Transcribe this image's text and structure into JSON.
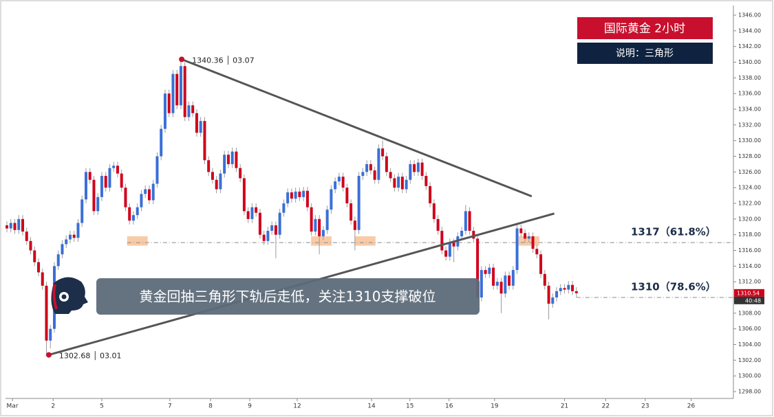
{
  "chart_data": {
    "type": "candlestick",
    "title": "国际黄金  2小时",
    "subtitle": "说明：三角形",
    "caption": "黄金回抽三角形下轨后走低，关注1310支撑破位",
    "up_color": "#3a6fd6",
    "down_color": "#d0021b",
    "xlim": [
      0,
      183
    ],
    "ylim": [
      1298,
      1346
    ],
    "xticks": [
      {
        "value": 1.4,
        "label": "Mar"
      },
      {
        "value": 11.7,
        "label": "2"
      },
      {
        "value": 24.0,
        "label": "5"
      },
      {
        "value": 41.2,
        "label": "7"
      },
      {
        "value": 51.5,
        "label": "8"
      },
      {
        "value": 61.4,
        "label": "9"
      },
      {
        "value": 73.4,
        "label": "12"
      },
      {
        "value": 92.2,
        "label": "14"
      },
      {
        "value": 101.9,
        "label": "15"
      },
      {
        "value": 111.8,
        "label": "16"
      },
      {
        "value": 123.3,
        "label": "19"
      },
      {
        "value": 141.0,
        "label": "21"
      },
      {
        "value": 151.4,
        "label": "22"
      },
      {
        "value": 161.4,
        "label": "23"
      },
      {
        "value": 173.0,
        "label": "26"
      }
    ],
    "yticks": [
      {
        "value": 1298,
        "label": "1298.00"
      },
      {
        "value": 1300,
        "label": "1300.00"
      },
      {
        "value": 1302,
        "label": "1302.00"
      },
      {
        "value": 1304,
        "label": "1304.00"
      },
      {
        "value": 1306,
        "label": "1306.00"
      },
      {
        "value": 1308,
        "label": "1308.00"
      },
      {
        "value": 1310,
        "label": "1310.00"
      },
      {
        "value": 1312,
        "label": "1312.00"
      },
      {
        "value": 1314,
        "label": "1314.00"
      },
      {
        "value": 1316,
        "label": "1316.00"
      },
      {
        "value": 1318,
        "label": "1318.00"
      },
      {
        "value": 1320,
        "label": "1320.00"
      },
      {
        "value": 1322,
        "label": "1322.00"
      },
      {
        "value": 1324,
        "label": "1324.00"
      },
      {
        "value": 1326,
        "label": "1326.00"
      },
      {
        "value": 1328,
        "label": "1328.00"
      },
      {
        "value": 1330,
        "label": "1330.00"
      },
      {
        "value": 1332,
        "label": "1332.00"
      },
      {
        "value": 1334,
        "label": "1334.00"
      },
      {
        "value": 1336,
        "label": "1336.00"
      },
      {
        "value": 1338,
        "label": "1338.00"
      },
      {
        "value": 1340,
        "label": "1340.00"
      },
      {
        "value": 1342,
        "label": "1342.00"
      },
      {
        "value": 1344,
        "label": "1344.00"
      },
      {
        "value": 1346,
        "label": "1346.00"
      }
    ],
    "open": [
      1319.2,
      1318.8,
      1319.5,
      1318.6,
      1320.0,
      1318.4,
      1317.2,
      1316.0,
      1314.5,
      1313.2,
      1311.5,
      1304.5,
      1306.0,
      1314.0,
      1315.5,
      1316.8,
      1317.4,
      1318.0,
      1317.6,
      1319.5,
      1322.5,
      1326.0,
      1325.0,
      1321.0,
      1322.8,
      1325.5,
      1324.0,
      1326.5,
      1326.8,
      1325.8,
      1324.0,
      1321.5,
      1319.8,
      1320.5,
      1321.5,
      1323.2,
      1323.8,
      1322.4,
      1324.5,
      1328.0,
      1331.5,
      1336.0,
      1333.5,
      1338.5,
      1334.5,
      1339.5,
      1333.0,
      1334.5,
      1333.5,
      1331.0,
      1332.5,
      1327.5,
      1326.0,
      1325.0,
      1323.8,
      1325.8,
      1328.2,
      1327.0,
      1328.6,
      1326.5,
      1325.2,
      1321.0,
      1320.0,
      1321.5,
      1320.8,
      1318.0,
      1317.2,
      1318.5,
      1319.2,
      1318.0,
      1320.8,
      1322.0,
      1323.4,
      1322.6,
      1323.5,
      1322.8,
      1323.6,
      1321.5,
      1318.4,
      1320.0,
      1317.8,
      1318.6,
      1321.2,
      1323.8,
      1324.8,
      1325.4,
      1324.0,
      1322.0,
      1319.8,
      1318.6,
      1325.5,
      1326.0,
      1327.0,
      1326.2,
      1325.0,
      1329.0,
      1328.0,
      1326.0,
      1325.2,
      1324.0,
      1325.4,
      1323.8,
      1325.0,
      1327.0,
      1326.0,
      1327.2,
      1325.5,
      1324.2,
      1322.0,
      1320.0,
      1318.5,
      1316.0,
      1315.2,
      1317.0,
      1316.5,
      1317.8,
      1318.5,
      1321.0,
      1318.5,
      1317.5,
      1310.0,
      1313.5,
      1313.0,
      1313.8,
      1311.5,
      1312.0,
      1310.5,
      1312.8,
      1311.5,
      1313.5,
      1318.8,
      1318.2,
      1317.5,
      1317.8,
      1316.2,
      1315.5,
      1313.0,
      1311.5,
      1309.2,
      1310.0,
      1310.8,
      1311.2,
      1311.0,
      1311.6,
      1310.8
    ],
    "high": [
      1319.7,
      1320.0,
      1320.0,
      1320.5,
      1320.5,
      1318.9,
      1317.7,
      1316.5,
      1315.0,
      1313.7,
      1312.0,
      1306.5,
      1314.5,
      1316.0,
      1317.3,
      1317.9,
      1318.5,
      1318.5,
      1320.0,
      1323.0,
      1326.5,
      1326.5,
      1325.5,
      1323.3,
      1326.0,
      1326.0,
      1327.0,
      1327.3,
      1327.3,
      1326.3,
      1324.5,
      1322.0,
      1321.0,
      1322.0,
      1323.7,
      1324.3,
      1324.3,
      1325.0,
      1328.5,
      1332.0,
      1336.5,
      1336.5,
      1339.0,
      1339.0,
      1340.36,
      1340.0,
      1335.0,
      1335.0,
      1334.0,
      1333.0,
      1333.0,
      1328.0,
      1326.5,
      1325.5,
      1326.3,
      1328.7,
      1328.7,
      1329.1,
      1329.1,
      1327.0,
      1325.7,
      1321.5,
      1322.0,
      1322.0,
      1321.3,
      1318.5,
      1319.0,
      1319.7,
      1319.7,
      1321.3,
      1322.5,
      1323.9,
      1323.9,
      1324.0,
      1324.0,
      1324.1,
      1324.1,
      1322.0,
      1320.5,
      1320.5,
      1319.1,
      1321.7,
      1324.3,
      1325.3,
      1325.9,
      1325.9,
      1324.5,
      1322.5,
      1320.3,
      1326.0,
      1326.5,
      1327.5,
      1327.5,
      1326.7,
      1329.5,
      1330.0,
      1328.5,
      1326.5,
      1325.7,
      1325.9,
      1325.9,
      1325.5,
      1327.5,
      1327.5,
      1327.7,
      1327.7,
      1326.0,
      1324.7,
      1322.5,
      1320.5,
      1319.0,
      1316.5,
      1317.5,
      1317.5,
      1318.3,
      1319.0,
      1321.8,
      1321.5,
      1319.0,
      1318.0,
      1314.0,
      1314.0,
      1314.3,
      1314.3,
      1312.5,
      1312.5,
      1313.3,
      1313.3,
      1314.0,
      1319.5,
      1319.3,
      1318.7,
      1318.3,
      1318.3,
      1316.7,
      1316.0,
      1313.5,
      1312.0,
      1310.5,
      1311.3,
      1311.7,
      1311.7,
      1312.1,
      1312.1,
      1311.3
    ],
    "low": [
      1318.3,
      1318.3,
      1318.1,
      1318.1,
      1317.9,
      1316.7,
      1315.5,
      1314.0,
      1312.7,
      1311.0,
      1302.68,
      1303.5,
      1305.5,
      1313.5,
      1315.0,
      1316.3,
      1316.9,
      1317.1,
      1317.1,
      1319.0,
      1322.0,
      1324.5,
      1320.5,
      1320.5,
      1322.3,
      1323.5,
      1323.5,
      1326.0,
      1325.3,
      1323.5,
      1321.0,
      1319.3,
      1319.3,
      1320.0,
      1321.0,
      1322.7,
      1321.9,
      1321.9,
      1324.0,
      1327.5,
      1331.0,
      1333.0,
      1333.0,
      1334.0,
      1334.0,
      1332.5,
      1332.5,
      1333.0,
      1330.5,
      1330.5,
      1327.0,
      1325.5,
      1324.5,
      1323.3,
      1323.3,
      1325.3,
      1326.5,
      1326.5,
      1326.0,
      1324.7,
      1320.5,
      1319.5,
      1319.5,
      1320.3,
      1317.5,
      1316.7,
      1316.7,
      1318.0,
      1315.0,
      1317.5,
      1320.3,
      1321.5,
      1322.1,
      1322.1,
      1322.3,
      1322.3,
      1321.0,
      1317.9,
      1317.9,
      1315.5,
      1317.3,
      1318.1,
      1320.7,
      1323.3,
      1324.3,
      1323.5,
      1321.5,
      1319.3,
      1316.0,
      1318.1,
      1325.0,
      1325.5,
      1325.7,
      1324.5,
      1324.5,
      1327.5,
      1325.5,
      1324.7,
      1323.5,
      1323.5,
      1323.3,
      1323.3,
      1324.5,
      1325.5,
      1325.5,
      1325.0,
      1323.7,
      1321.5,
      1319.5,
      1318.0,
      1315.5,
      1314.7,
      1314.7,
      1314.5,
      1316.0,
      1317.3,
      1318.0,
      1318.0,
      1317.0,
      1309.5,
      1309.5,
      1312.5,
      1312.5,
      1311.0,
      1311.0,
      1308.0,
      1310.0,
      1311.0,
      1311.0,
      1313.0,
      1317.7,
      1317.0,
      1317.0,
      1315.7,
      1315.0,
      1312.5,
      1311.0,
      1307.2,
      1308.7,
      1309.5,
      1310.3,
      1310.5,
      1310.5,
      1310.3,
      1310.0
    ],
    "close": [
      1318.8,
      1319.5,
      1318.6,
      1320.0,
      1318.4,
      1317.2,
      1316.0,
      1314.5,
      1313.2,
      1311.5,
      1304.5,
      1306.0,
      1314.0,
      1315.5,
      1316.8,
      1317.4,
      1318.0,
      1317.6,
      1319.5,
      1322.5,
      1326.0,
      1325.0,
      1321.0,
      1322.8,
      1325.5,
      1324.0,
      1326.5,
      1326.8,
      1325.8,
      1324.0,
      1321.5,
      1319.8,
      1320.5,
      1321.5,
      1323.2,
      1323.8,
      1322.4,
      1324.5,
      1328.0,
      1331.5,
      1336.0,
      1333.5,
      1338.5,
      1334.5,
      1339.5,
      1333.0,
      1334.5,
      1333.5,
      1331.0,
      1332.5,
      1327.5,
      1326.0,
      1325.0,
      1323.8,
      1325.8,
      1328.2,
      1327.0,
      1328.6,
      1326.5,
      1325.2,
      1321.0,
      1320.0,
      1321.5,
      1320.8,
      1318.0,
      1317.2,
      1318.5,
      1319.2,
      1318.0,
      1320.8,
      1322.0,
      1323.4,
      1322.6,
      1323.5,
      1322.8,
      1323.6,
      1321.5,
      1318.4,
      1320.0,
      1317.8,
      1318.6,
      1321.2,
      1323.8,
      1324.8,
      1325.4,
      1324.0,
      1322.0,
      1319.8,
      1318.6,
      1325.5,
      1326.0,
      1327.0,
      1326.2,
      1325.0,
      1329.0,
      1328.0,
      1326.0,
      1325.2,
      1324.0,
      1325.4,
      1323.8,
      1325.0,
      1327.0,
      1326.0,
      1327.2,
      1325.5,
      1324.2,
      1322.0,
      1320.0,
      1318.5,
      1316.0,
      1315.2,
      1317.0,
      1316.5,
      1317.8,
      1318.5,
      1321.0,
      1318.5,
      1317.5,
      1310.0,
      1313.5,
      1313.0,
      1313.8,
      1311.5,
      1312.0,
      1310.5,
      1312.8,
      1311.5,
      1313.5,
      1318.8,
      1318.2,
      1317.5,
      1317.8,
      1316.2,
      1315.5,
      1313.0,
      1311.5,
      1309.2,
      1310.0,
      1310.8,
      1311.2,
      1311.0,
      1311.6,
      1310.8,
      1310.54
    ],
    "trendlines": [
      {
        "x": [
          44.2,
          132.7
        ],
        "y": [
          1340.36,
          1322.9
        ]
      },
      {
        "x": [
          10.6,
          138.4
        ],
        "y": [
          1302.68,
          1320.7
        ]
      }
    ],
    "points": [
      {
        "x": 44.2,
        "y": 1340.36,
        "label": "1340.36 │ 03.07"
      },
      {
        "x": 10.6,
        "y": 1302.68,
        "label": "1302.68 │ 03.01"
      }
    ],
    "levels": [
      {
        "value": 1317,
        "label": "1317（61.8%）"
      },
      {
        "value": 1310,
        "label": "1310（78.6%）"
      }
    ],
    "highlights": [
      {
        "x": [
          30.4,
          35.6
        ],
        "y": [
          1316.6,
          1317.8
        ]
      },
      {
        "x": [
          76.9,
          82.1
        ],
        "y": [
          1316.6,
          1317.8
        ]
      },
      {
        "x": [
          87.9,
          93.2
        ],
        "y": [
          1316.6,
          1317.8
        ]
      },
      {
        "x": [
          129.4,
          134.6
        ],
        "y": [
          1316.6,
          1317.8
        ]
      }
    ],
    "last_price": 1310.54,
    "countdown": "40:48"
  }
}
